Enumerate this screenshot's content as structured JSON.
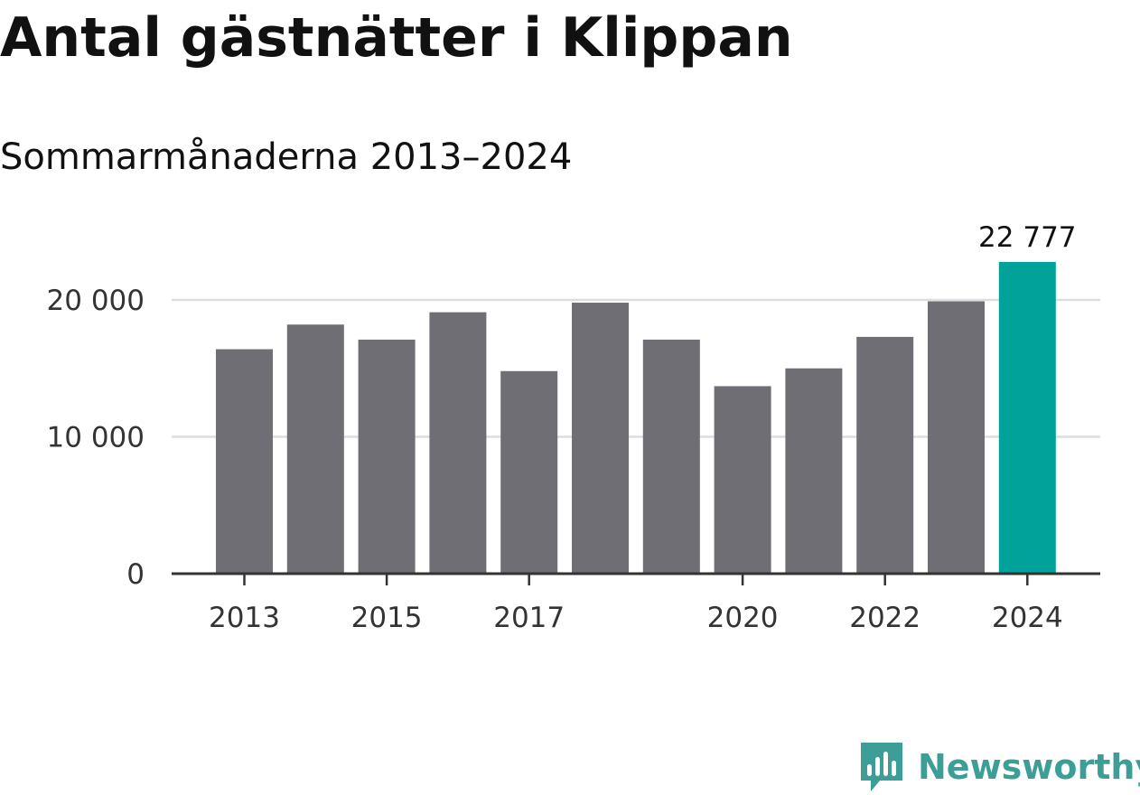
{
  "title": "Antal gästnätter i Klippan",
  "subtitle": "Sommarmånaderna 2013–2024",
  "brand": {
    "name": "Newsworthy",
    "color": "#3d9e98",
    "icon": "bar-chart-speech-bubble-icon"
  },
  "colors": {
    "bar": "#6f6e74",
    "highlight": "#00a29a",
    "grid": "#dddddd",
    "axis": "#333333"
  },
  "chart_data": {
    "type": "bar",
    "categories": [
      "2013",
      "2014",
      "2015",
      "2016",
      "2017",
      "2018",
      "2019",
      "2020",
      "2021",
      "2022",
      "2023",
      "2024"
    ],
    "values": [
      16400,
      18200,
      17100,
      19100,
      14800,
      19800,
      17100,
      13700,
      15000,
      17300,
      19900,
      22777
    ],
    "highlight_index": 11,
    "value_labels": [
      {
        "index": 11,
        "text": "22 777"
      }
    ],
    "x_tick_labels": [
      {
        "index": 0,
        "text": "2013"
      },
      {
        "index": 2,
        "text": "2015"
      },
      {
        "index": 4,
        "text": "2017"
      },
      {
        "index": 7,
        "text": "2020"
      },
      {
        "index": 9,
        "text": "2022"
      },
      {
        "index": 11,
        "text": "2024"
      }
    ],
    "y_ticks": [
      {
        "value": 0,
        "text": "0"
      },
      {
        "value": 10000,
        "text": "10 000"
      },
      {
        "value": 20000,
        "text": "20 000"
      }
    ],
    "ylim": [
      0,
      20000
    ],
    "grid": true,
    "legend": false,
    "xlabel": "",
    "ylabel": ""
  }
}
